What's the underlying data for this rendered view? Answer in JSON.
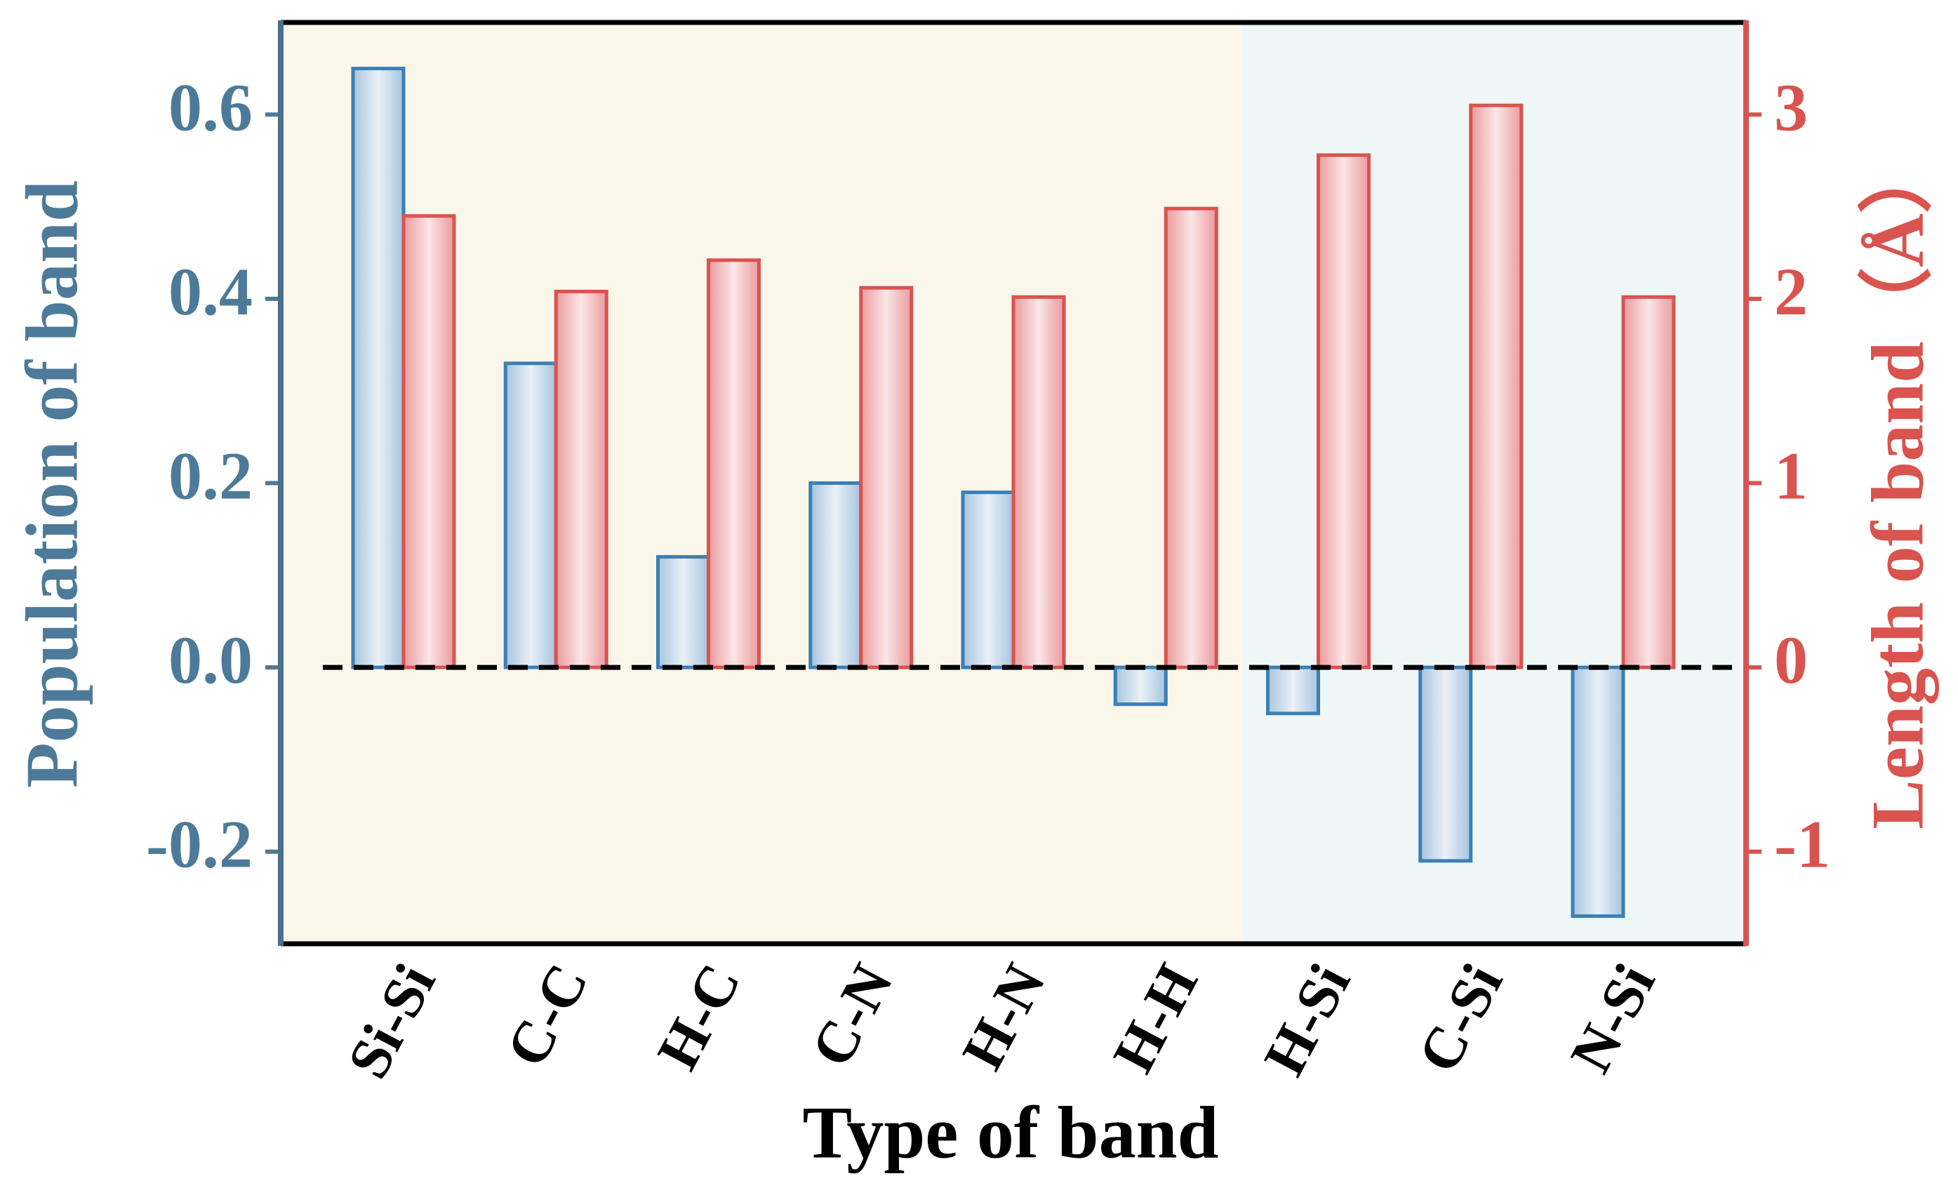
{
  "chart_data": {
    "type": "bar",
    "x_label": "Type of band",
    "y_label": "Population of band",
    "y2_label": "Length of band（Å）",
    "categories": [
      "Si-Si",
      "C-C",
      "H-C",
      "C-N",
      "H-N",
      "H-H",
      "H-Si",
      "C-Si",
      "N-Si"
    ],
    "series": [
      {
        "color": "#3b7fb5",
        "values": [
          0.65,
          0.33,
          0.12,
          0.2,
          0.19,
          -0.04,
          -0.05,
          -0.21,
          -0.27
        ]
      },
      {
        "color": "#d9534f",
        "axis": "y2",
        "values": [
          2.45,
          2.04,
          2.21,
          2.06,
          2.01,
          2.49,
          2.78,
          3.05,
          2.01
        ]
      }
    ],
    "ylim": [
      -0.3,
      0.7
    ],
    "yticks": [
      -0.2,
      {
        "value": 0,
        "label": "0.0"
      },
      0.2,
      0.4,
      0.6
    ],
    "y2lim": [
      -1.5,
      3.5
    ],
    "y2ticks": [
      -1,
      0,
      1,
      2,
      3
    ],
    "grid": false
  }
}
